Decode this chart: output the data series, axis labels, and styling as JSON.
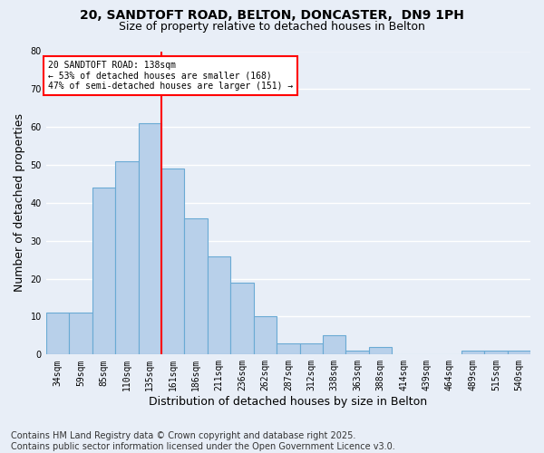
{
  "title_line1": "20, SANDTOFT ROAD, BELTON, DONCASTER,  DN9 1PH",
  "title_line2": "Size of property relative to detached houses in Belton",
  "xlabel": "Distribution of detached houses by size in Belton",
  "ylabel": "Number of detached properties",
  "categories": [
    "34sqm",
    "59sqm",
    "85sqm",
    "110sqm",
    "135sqm",
    "161sqm",
    "186sqm",
    "211sqm",
    "236sqm",
    "262sqm",
    "287sqm",
    "312sqm",
    "338sqm",
    "363sqm",
    "388sqm",
    "414sqm",
    "439sqm",
    "464sqm",
    "489sqm",
    "515sqm",
    "540sqm"
  ],
  "values": [
    11,
    11,
    44,
    51,
    61,
    49,
    36,
    26,
    19,
    10,
    3,
    3,
    5,
    1,
    2,
    0,
    0,
    0,
    1,
    1,
    1
  ],
  "bar_color": "#b8d0ea",
  "bar_edge_color": "#6aaad4",
  "red_line_index": 4.5,
  "annotation_text": "20 SANDTOFT ROAD: 138sqm\n← 53% of detached houses are smaller (168)\n47% of semi-detached houses are larger (151) →",
  "annotation_box_color": "white",
  "annotation_box_edge_color": "red",
  "footnote": "Contains HM Land Registry data © Crown copyright and database right 2025.\nContains public sector information licensed under the Open Government Licence v3.0.",
  "ylim": [
    0,
    80
  ],
  "yticks": [
    0,
    10,
    20,
    30,
    40,
    50,
    60,
    70,
    80
  ],
  "background_color": "#e8eef7",
  "plot_bg_color": "#e8eef7",
  "grid_color": "white",
  "title_fontsize": 10,
  "subtitle_fontsize": 9,
  "tick_fontsize": 7,
  "label_fontsize": 9,
  "footnote_fontsize": 7
}
